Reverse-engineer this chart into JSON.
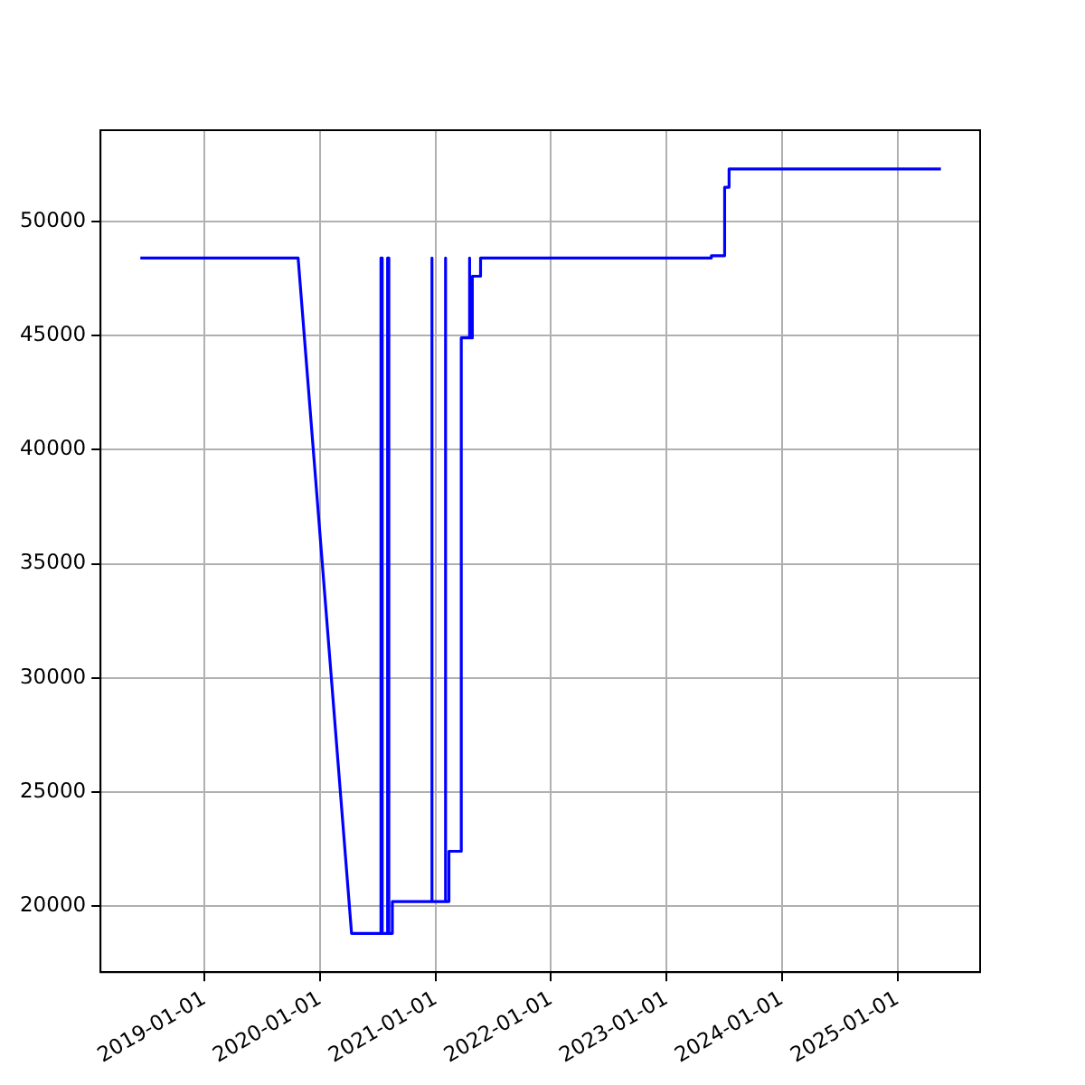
{
  "chart_data": {
    "type": "line",
    "x": [
      "2018-06-12",
      "2019-10-24",
      "2020-04-10",
      "2020-07-12",
      "2020-07-12",
      "2020-07-16",
      "2020-07-16",
      "2020-08-02",
      "2020-08-02",
      "2020-08-06",
      "2020-08-06",
      "2020-08-17",
      "2020-08-17",
      "2020-12-19",
      "2020-12-19",
      "2020-12-21",
      "2020-12-21",
      "2021-01-31",
      "2021-01-31",
      "2021-02-02",
      "2021-02-02",
      "2021-02-12",
      "2021-02-12",
      "2021-03-23",
      "2021-03-23",
      "2021-04-17",
      "2021-04-17",
      "2021-04-19",
      "2021-04-19",
      "2021-04-27",
      "2021-04-27",
      "2021-05-23",
      "2021-05-23",
      "2023-05-23",
      "2023-05-23",
      "2023-07-04",
      "2023-07-04",
      "2023-07-18",
      "2023-07-18",
      "2025-05-18"
    ],
    "series": [
      {
        "color": "#0000ff",
        "values": [
          48400,
          48400,
          18800,
          18800,
          48400,
          48400,
          18800,
          18800,
          48400,
          48400,
          18800,
          18800,
          20200,
          20200,
          48400,
          48400,
          20200,
          20200,
          48400,
          48400,
          20200,
          20200,
          22400,
          22400,
          44900,
          44900,
          48400,
          48400,
          44900,
          44900,
          47600,
          47600,
          48400,
          48400,
          48500,
          48500,
          51500,
          51500,
          52300,
          52300
        ]
      }
    ],
    "xlim": [
      "2018-02-06",
      "2025-09-19"
    ],
    "xticks": [
      "2019-01-01",
      "2020-01-01",
      "2021-01-01",
      "2022-01-01",
      "2023-01-01",
      "2024-01-01",
      "2025-01-01"
    ],
    "ylim": [
      17100,
      54000
    ],
    "yticks": [
      20000,
      25000,
      30000,
      35000,
      40000,
      45000,
      50000
    ],
    "grid": true
  }
}
